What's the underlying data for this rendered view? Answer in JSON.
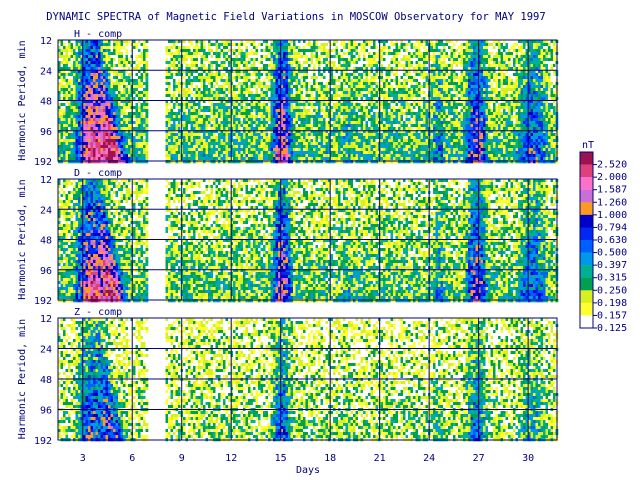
{
  "chart_data": {
    "type": "heatmap",
    "title": "DYNAMIC SPECTRA of Magnetic Field Variations in MOSCOW Observatory for MAY 1997",
    "xlabel": "Days",
    "ylabel": "Harmonic Period, min",
    "xlim": [
      1.5,
      31.75
    ],
    "x_ticks": [
      3,
      6,
      9,
      12,
      15,
      18,
      21,
      24,
      27,
      30
    ],
    "y_scale": "log2",
    "y_ticks": [
      12,
      24,
      48,
      96,
      192
    ],
    "panels": [
      {
        "label": "H - comp"
      },
      {
        "label": "D - comp"
      },
      {
        "label": "Z - comp"
      }
    ],
    "data_gaps_days": [
      [
        6.9,
        7.4
      ],
      [
        7.4,
        7.9
      ]
    ],
    "colorbar": {
      "unit": "nT",
      "levels": [
        "2.520",
        "2.000",
        "1.587",
        "1.260",
        "1.000",
        "0.794",
        "0.630",
        "0.500",
        "0.397",
        "0.315",
        "0.250",
        "0.198",
        "0.157",
        "0.125"
      ],
      "colors": [
        "#9c1350",
        "#e0407a",
        "#ff70c8",
        "#c870d8",
        "#ff9a20",
        "#0000c8",
        "#0028f0",
        "#0060ff",
        "#0098e8",
        "#00b090",
        "#00a050",
        "#d8f020",
        "#ffff30",
        "#ffffff"
      ]
    },
    "activity_features": [
      {
        "day": 3.5,
        "strength": 0.95,
        "width": 1.1,
        "type": "storm"
      },
      {
        "day": 4.6,
        "strength": 1.0,
        "width": 0.4,
        "type": "intense"
      },
      {
        "day": 15.0,
        "strength": 0.85,
        "width": 0.7,
        "type": "storm"
      },
      {
        "day": 26.8,
        "strength": 0.75,
        "width": 0.8,
        "type": "storm"
      },
      {
        "day": 24.5,
        "strength": 0.45,
        "width": 0.6,
        "type": "moderate"
      },
      {
        "day": 30.2,
        "strength": 0.55,
        "width": 1.2,
        "type": "moderate"
      },
      {
        "day": 19.0,
        "strength": 0.35,
        "width": 0.8,
        "type": "moderate"
      }
    ]
  }
}
